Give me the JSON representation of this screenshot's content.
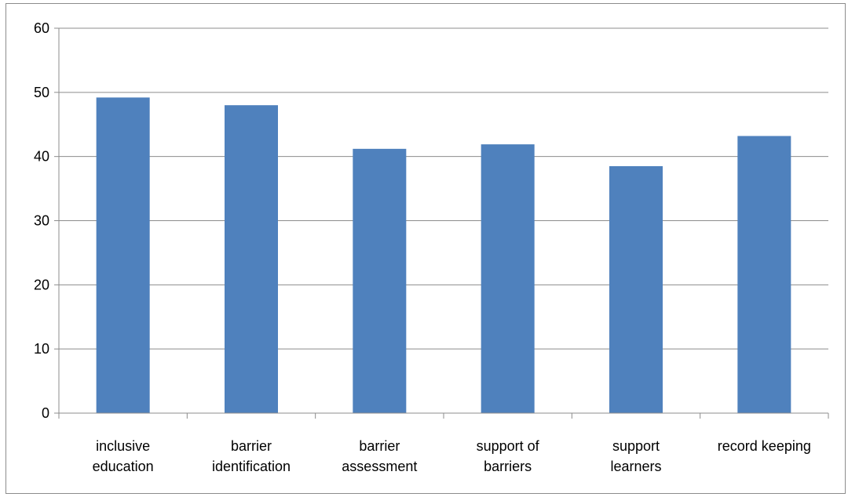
{
  "chart_data": {
    "type": "bar",
    "title": "",
    "xlabel": "",
    "ylabel": "",
    "categories": [
      [
        "inclusive",
        "education"
      ],
      [
        "barrier",
        "identification"
      ],
      [
        "barrier",
        "assessment"
      ],
      [
        "support of",
        "barriers"
      ],
      [
        "support",
        "learners"
      ],
      [
        "record keeping"
      ]
    ],
    "values": [
      49.2,
      48.0,
      41.2,
      41.9,
      38.5,
      43.2
    ],
    "ylim": [
      0,
      60
    ],
    "yticks": [
      0,
      10,
      20,
      30,
      40,
      50,
      60
    ],
    "grid": true,
    "legend": "none",
    "colors": {
      "bar": "#4F81BD",
      "grid": "#8c8c8c",
      "axis": "#8c8c8c"
    }
  }
}
